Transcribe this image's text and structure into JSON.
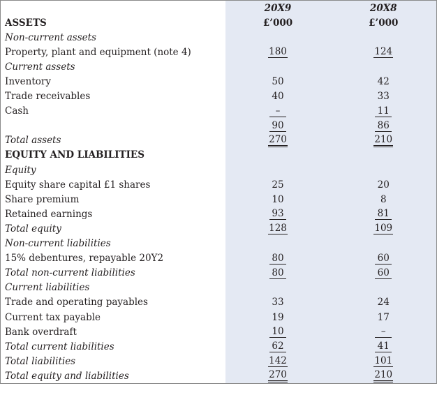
{
  "columns": {
    "year1": "20X9",
    "year2": "20X8"
  },
  "rows": [
    {
      "label": "",
      "y1": "20X9",
      "y2": "20X8",
      "style": "header"
    },
    {
      "label": "ASSETS",
      "y1": "£’000",
      "y2": "£’000",
      "style": "bold"
    },
    {
      "label": "Non-current assets",
      "y1": "",
      "y2": "",
      "style": "italic"
    },
    {
      "label": "Property, plant and equipment (note 4)",
      "y1": "180",
      "y2": "124",
      "style": "normal",
      "rule": "single"
    },
    {
      "label": "Current assets",
      "y1": "",
      "y2": "",
      "style": "italic"
    },
    {
      "label": "Inventory",
      "y1": "50",
      "y2": "42",
      "style": "normal"
    },
    {
      "label": "Trade receivables",
      "y1": "40",
      "y2": "33",
      "style": "normal"
    },
    {
      "label": "Cash",
      "y1": "–",
      "y2": "11",
      "style": "normal",
      "rule": "single"
    },
    {
      "label": "",
      "y1": "90",
      "y2": "86",
      "style": "normal",
      "rule": "single"
    },
    {
      "label": "Total assets",
      "y1": "270",
      "y2": "210",
      "style": "italic",
      "rule": "double"
    },
    {
      "label": "EQUITY AND LIABILITIES",
      "y1": "",
      "y2": "",
      "style": "bold"
    },
    {
      "label": "Equity",
      "y1": "",
      "y2": "",
      "style": "italic"
    },
    {
      "label": "Equity share capital £1 shares",
      "y1": "25",
      "y2": "20",
      "style": "normal"
    },
    {
      "label": "Share premium",
      "y1": "10",
      "y2": "8",
      "style": "normal"
    },
    {
      "label": "Retained earnings",
      "y1": "93",
      "y2": "81",
      "style": "normal",
      "rule": "single"
    },
    {
      "label": "Total equity",
      "y1": "128",
      "y2": "109",
      "style": "italic",
      "rule": "single"
    },
    {
      "label": "Non-current liabilities",
      "y1": "",
      "y2": "",
      "style": "italic"
    },
    {
      "label": "15% debentures, repayable 20Y2",
      "y1": "80",
      "y2": "60",
      "style": "normal",
      "rule": "single"
    },
    {
      "label": "Total non-current liabilities",
      "y1": "80",
      "y2": "60",
      "style": "italic",
      "rule": "single"
    },
    {
      "label": "Current liabilities",
      "y1": "",
      "y2": "",
      "style": "italic"
    },
    {
      "label": "Trade and operating payables",
      "y1": "33",
      "y2": "24",
      "style": "normal"
    },
    {
      "label": "Current tax payable",
      "y1": "19",
      "y2": "17",
      "style": "normal"
    },
    {
      "label": "Bank overdraft",
      "y1": "10",
      "y2": "–",
      "style": "normal",
      "rule": "single"
    },
    {
      "label": "Total current liabilities",
      "y1": "62",
      "y2": "41",
      "style": "italic",
      "rule": "single"
    },
    {
      "label": "Total liabilities",
      "y1": "142",
      "y2": "101",
      "style": "italic",
      "rule": "single"
    },
    {
      "label": "Total equity and liabilities",
      "y1": "270",
      "y2": "210",
      "style": "italic",
      "rule": "double"
    }
  ]
}
